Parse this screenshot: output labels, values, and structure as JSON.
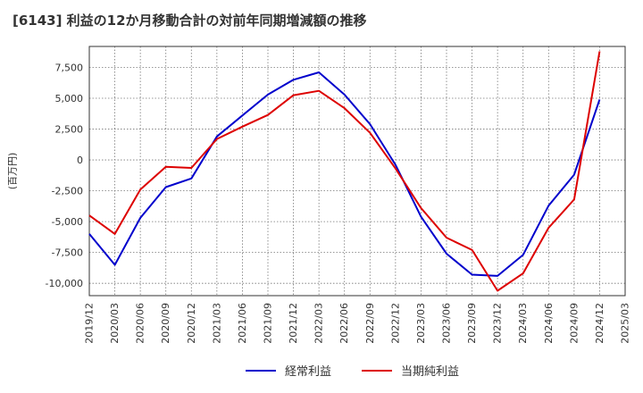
{
  "chart_data": {
    "type": "line",
    "title": "[6143]  利益の12か月移動合計の対前年同期増減額の推移",
    "ylabel": "(百万円)",
    "xlabel": "",
    "ylim": [
      -11000,
      9200
    ],
    "yticks": [
      7500,
      5000,
      2500,
      0,
      -2500,
      -5000,
      -7500,
      -10000
    ],
    "ytick_labels": [
      "7,500",
      "5,000",
      "2,500",
      "0",
      "-2,500",
      "-5,000",
      "-7,500",
      "-10,000"
    ],
    "x_labels": [
      "2019/12",
      "2020/03",
      "2020/06",
      "2020/09",
      "2020/12",
      "2021/03",
      "2021/06",
      "2021/09",
      "2021/12",
      "2022/03",
      "2022/06",
      "2022/09",
      "2022/12",
      "2023/03",
      "2023/06",
      "2023/09",
      "2023/12",
      "2024/03",
      "2024/06",
      "2024/09",
      "2024/12",
      "2025/03"
    ],
    "grid": true,
    "legend_position": "bottom",
    "series": [
      {
        "name": "経常利益",
        "color": "#0000cc",
        "values": [
          -6000,
          -8500,
          -4700,
          -2200,
          -1500,
          1900,
          3600,
          5300,
          6500,
          7100,
          5300,
          2900,
          -400,
          -4600,
          -7600,
          -9300,
          -9400,
          -7700,
          -3700,
          -1200,
          4900,
          null
        ]
      },
      {
        "name": "当期純利益",
        "color": "#dd0000",
        "values": [
          -4500,
          -6000,
          -2400,
          -550,
          -650,
          1700,
          2700,
          3650,
          5250,
          5600,
          4200,
          2200,
          -700,
          -3900,
          -6300,
          -7300,
          -10600,
          -9200,
          -5500,
          -3200,
          8800,
          null
        ]
      }
    ]
  }
}
